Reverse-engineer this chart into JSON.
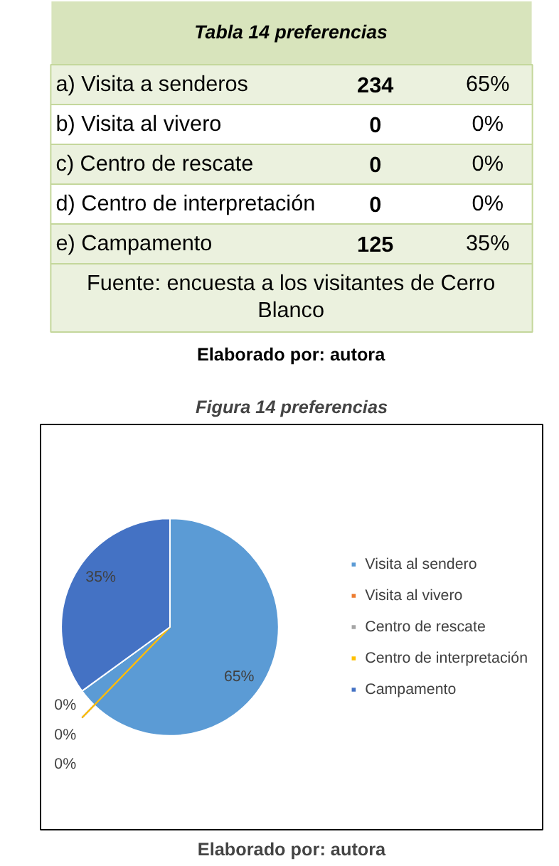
{
  "chart_data": [
    {
      "type": "other",
      "title": "Tabla 14 preferencias",
      "annotations": [
        "a) Visita a senderos",
        "234",
        "65%",
        "b) Visita al vivero",
        "0",
        "0%",
        "c) Centro de rescate",
        "0",
        "0%",
        "d) Centro de interpretación",
        "0",
        "0%",
        "e) Campamento",
        "125",
        "35%",
        "Fuente: encuesta a los visitantes de Cerro Blanco",
        "Elaborado por: autora"
      ]
    },
    {
      "type": "pie",
      "title": "Figura 14 preferencias",
      "categories": [
        "Visita al sendero",
        "Visita al vivero",
        "Centro de rescate",
        "Centro de interpretación",
        "Campamento"
      ],
      "values": [
        65,
        0,
        0,
        0,
        35
      ],
      "colors": [
        "#5b9bd5",
        "#ed7d31",
        "#a5a5a5",
        "#ffc000",
        "#4472c4"
      ],
      "value_labels": [
        "65%",
        "0%",
        "0%",
        "0%",
        "35%"
      ],
      "legend": "right",
      "annotations": [
        "Elaborado por: autora"
      ]
    }
  ]
}
